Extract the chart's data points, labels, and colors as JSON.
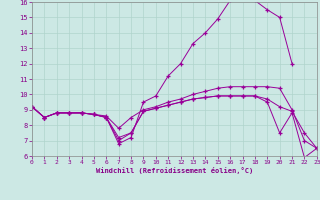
{
  "background_color": "#cce8e4",
  "line_color": "#990099",
  "grid_color": "#b0d4cc",
  "text_color": "#880088",
  "xlabel": "Windchill (Refroidissement éolien,°C)",
  "xlim": [
    0,
    23
  ],
  "ylim": [
    6,
    16
  ],
  "xticks": [
    0,
    1,
    2,
    3,
    4,
    5,
    6,
    7,
    8,
    9,
    10,
    11,
    12,
    13,
    14,
    15,
    16,
    17,
    18,
    19,
    20,
    21,
    22,
    23
  ],
  "yticks": [
    6,
    7,
    8,
    9,
    10,
    11,
    12,
    13,
    14,
    15,
    16
  ],
  "s1": [
    9.2,
    8.5,
    8.8,
    8.8,
    8.8,
    8.7,
    8.5,
    6.8,
    7.2,
    9.5,
    9.9,
    11.2,
    12.0,
    13.3,
    14.0,
    14.9,
    16.1,
    16.3,
    16.1,
    15.5,
    15.0,
    12.0,
    null,
    null
  ],
  "s2": [
    9.2,
    8.5,
    8.8,
    8.8,
    8.8,
    8.7,
    8.6,
    7.8,
    8.5,
    9.0,
    9.2,
    9.5,
    9.7,
    10.0,
    10.2,
    10.4,
    10.5,
    10.5,
    10.5,
    10.5,
    10.4,
    9.0,
    7.0,
    6.5
  ],
  "s3": [
    9.2,
    8.5,
    8.8,
    8.8,
    8.8,
    8.7,
    8.5,
    7.2,
    7.5,
    8.9,
    9.1,
    9.3,
    9.5,
    9.7,
    9.8,
    9.9,
    9.9,
    9.9,
    9.9,
    9.7,
    9.2,
    8.9,
    7.5,
    6.5
  ],
  "s4": [
    9.2,
    8.5,
    8.8,
    8.8,
    8.8,
    8.7,
    8.5,
    7.0,
    7.5,
    8.9,
    9.1,
    9.3,
    9.5,
    9.7,
    9.8,
    9.9,
    9.9,
    9.9,
    9.9,
    9.5,
    7.5,
    8.8,
    5.9,
    6.5
  ]
}
